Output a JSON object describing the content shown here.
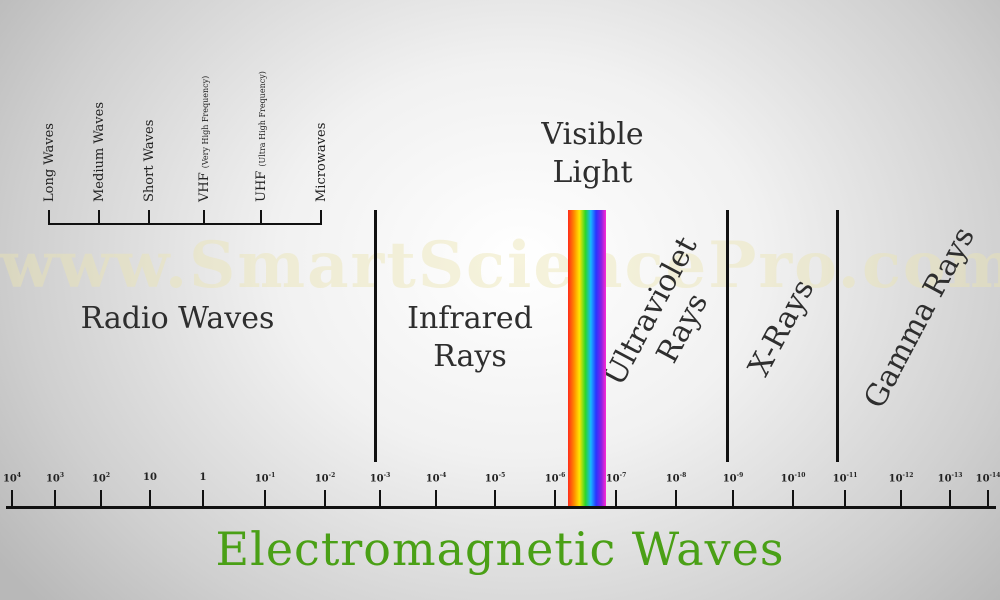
{
  "watermark": "www.SmartSciencePro.com",
  "title": "Electromagnetic Waves",
  "radio": {
    "label": "Radio Waves",
    "subtypes": [
      {
        "name": "Long Waves",
        "note": ""
      },
      {
        "name": "Medium Waves",
        "note": ""
      },
      {
        "name": "Short Waves",
        "note": ""
      },
      {
        "name": "VHF",
        "note": "(Very High Frequency)"
      },
      {
        "name": "UHF",
        "note": "(Ultra High Frequency)"
      },
      {
        "name": "Microwaves",
        "note": ""
      }
    ]
  },
  "infrared": {
    "line1": "Infrared",
    "line2": "Rays"
  },
  "visible": {
    "line1": "Visible",
    "line2": "Light"
  },
  "ultraviolet": {
    "line1": "Ultraviolet",
    "line2": "Rays"
  },
  "xrays": {
    "label": "X-Rays"
  },
  "gamma": {
    "label": "Gamma Rays"
  },
  "axis": {
    "ticks": [
      {
        "base": "10",
        "exp": "4"
      },
      {
        "base": "10",
        "exp": "3"
      },
      {
        "base": "10",
        "exp": "2"
      },
      {
        "base": "10",
        "exp": ""
      },
      {
        "base": "1",
        "exp": ""
      },
      {
        "base": "10",
        "exp": "-1"
      },
      {
        "base": "10",
        "exp": "-2"
      },
      {
        "base": "10",
        "exp": "-3"
      },
      {
        "base": "10",
        "exp": "-4"
      },
      {
        "base": "10",
        "exp": "-5"
      },
      {
        "base": "10",
        "exp": "-6"
      },
      {
        "base": "10",
        "exp": "-7"
      },
      {
        "base": "10",
        "exp": "-8"
      },
      {
        "base": "10",
        "exp": "-9"
      },
      {
        "base": "10",
        "exp": "-10"
      },
      {
        "base": "10",
        "exp": "-11"
      },
      {
        "base": "10",
        "exp": "-12"
      },
      {
        "base": "10",
        "exp": "-13"
      },
      {
        "base": "10",
        "exp": "-14"
      }
    ]
  },
  "colors": {
    "title": "#4aa016",
    "lines": "#111111"
  }
}
